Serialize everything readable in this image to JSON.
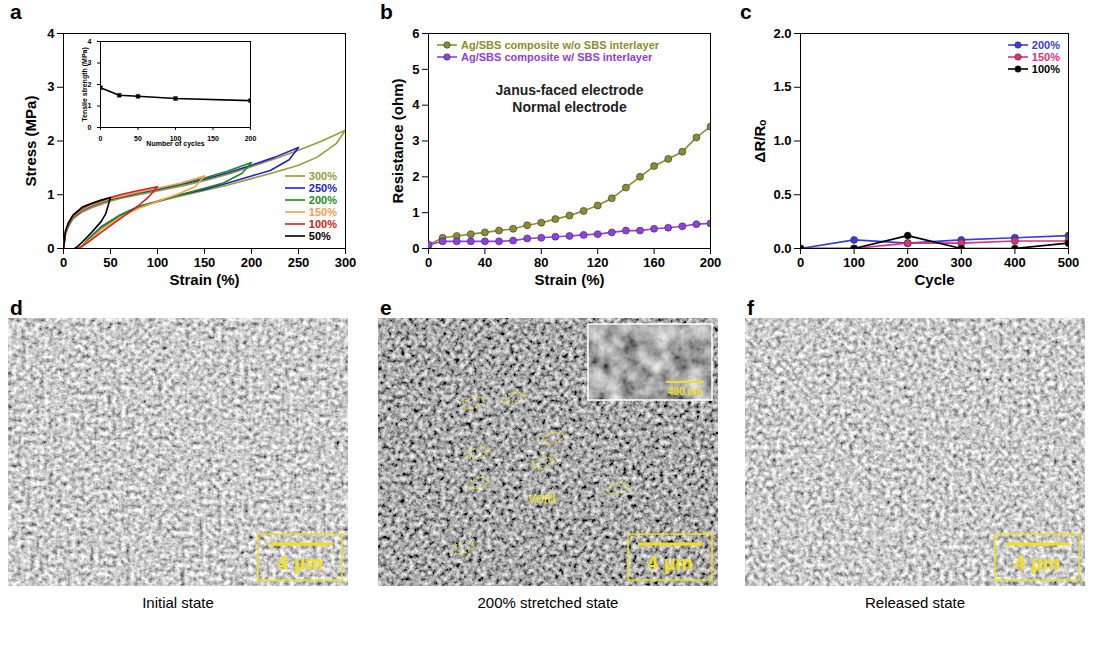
{
  "chart_data": [
    {
      "type": "line",
      "panel": "a",
      "x_label": "Strain (%)",
      "y_label": "Stress (MPa)",
      "xlim": [
        0,
        300
      ],
      "ylim": [
        0,
        4
      ],
      "xticks": [
        0,
        50,
        100,
        150,
        200,
        250,
        300
      ],
      "yticks": [
        0,
        1,
        2,
        3,
        4
      ],
      "legend": "lower right",
      "series": [
        {
          "name": "300%",
          "color": "#9a9a3a",
          "x": [
            0,
            2,
            5,
            10,
            20,
            30,
            40,
            50,
            60,
            80,
            100,
            125,
            150,
            175,
            200,
            225,
            250,
            275,
            300,
            290,
            270,
            250,
            225,
            200,
            175,
            150,
            120,
            100,
            80,
            60,
            40,
            25,
            18
          ],
          "values": [
            0,
            0.25,
            0.4,
            0.55,
            0.68,
            0.76,
            0.82,
            0.88,
            0.93,
            1.0,
            1.07,
            1.16,
            1.26,
            1.38,
            1.52,
            1.67,
            1.83,
            2.0,
            2.2,
            1.95,
            1.7,
            1.55,
            1.42,
            1.3,
            1.18,
            1.08,
            0.96,
            0.87,
            0.76,
            0.6,
            0.38,
            0.14,
            0
          ]
        },
        {
          "name": "250%",
          "color": "#2222c8",
          "x": [
            0,
            2,
            5,
            10,
            20,
            30,
            40,
            50,
            60,
            80,
            100,
            125,
            150,
            175,
            200,
            225,
            250,
            240,
            220,
            200,
            175,
            150,
            120,
            100,
            80,
            60,
            40,
            25,
            18
          ],
          "values": [
            0,
            0.27,
            0.42,
            0.57,
            0.71,
            0.79,
            0.85,
            0.91,
            0.95,
            1.03,
            1.1,
            1.19,
            1.29,
            1.41,
            1.55,
            1.7,
            1.88,
            1.65,
            1.45,
            1.35,
            1.22,
            1.1,
            0.98,
            0.88,
            0.78,
            0.62,
            0.4,
            0.15,
            0
          ]
        },
        {
          "name": "200%",
          "color": "#1c8c1c",
          "x": [
            0,
            2,
            5,
            10,
            20,
            30,
            40,
            50,
            60,
            80,
            100,
            125,
            150,
            175,
            200,
            190,
            170,
            150,
            120,
            100,
            80,
            60,
            40,
            25,
            18
          ],
          "values": [
            0,
            0.28,
            0.43,
            0.58,
            0.72,
            0.8,
            0.86,
            0.92,
            0.96,
            1.04,
            1.11,
            1.2,
            1.31,
            1.44,
            1.6,
            1.4,
            1.22,
            1.12,
            0.98,
            0.88,
            0.78,
            0.62,
            0.4,
            0.15,
            0
          ]
        },
        {
          "name": "150%",
          "color": "#f0a050",
          "x": [
            0,
            2,
            5,
            10,
            20,
            30,
            40,
            50,
            60,
            80,
            100,
            125,
            150,
            140,
            120,
            100,
            80,
            60,
            40,
            25,
            18
          ],
          "values": [
            0,
            0.29,
            0.44,
            0.59,
            0.73,
            0.81,
            0.87,
            0.93,
            0.97,
            1.05,
            1.12,
            1.22,
            1.35,
            1.15,
            1.0,
            0.88,
            0.75,
            0.58,
            0.35,
            0.12,
            0
          ]
        },
        {
          "name": "100%",
          "color": "#d42020",
          "x": [
            0,
            2,
            5,
            10,
            20,
            30,
            40,
            50,
            60,
            80,
            100,
            90,
            80,
            60,
            40,
            25,
            15
          ],
          "values": [
            0,
            0.3,
            0.45,
            0.6,
            0.75,
            0.83,
            0.89,
            0.95,
            1.0,
            1.08,
            1.15,
            0.95,
            0.8,
            0.55,
            0.3,
            0.1,
            0
          ]
        },
        {
          "name": "50%",
          "color": "#000000",
          "x": [
            0,
            2,
            5,
            10,
            20,
            30,
            40,
            50,
            45,
            40,
            30,
            20,
            15,
            12
          ],
          "values": [
            0,
            0.32,
            0.47,
            0.62,
            0.77,
            0.84,
            0.9,
            0.95,
            0.65,
            0.5,
            0.3,
            0.12,
            0.04,
            0
          ]
        }
      ],
      "inset": {
        "type": "line",
        "x_label": "Number of cycles",
        "y_label": "Tensile strength (MPa)",
        "xlim": [
          0,
          200
        ],
        "ylim": [
          0,
          4
        ],
        "xticks": [
          0,
          50,
          100,
          150,
          200
        ],
        "yticks": [
          0,
          1,
          2,
          3,
          4
        ],
        "marker": "square",
        "series": [
          {
            "color": "#000000",
            "x": [
              0,
              25,
              50,
              100,
              200
            ],
            "values": [
              1.85,
              1.5,
              1.45,
              1.35,
              1.25
            ]
          }
        ]
      }
    },
    {
      "type": "line",
      "panel": "b",
      "x_label": "Strain (%)",
      "y_label": "Resistance (ohm)",
      "xlim": [
        0,
        200
      ],
      "ylim": [
        0,
        6
      ],
      "xticks": [
        0,
        40,
        80,
        120,
        160,
        200
      ],
      "yticks": [
        0,
        1,
        2,
        3,
        4,
        5,
        6
      ],
      "legend": "upper left",
      "marker": "circle",
      "annotations": [
        "Janus-faced electrode",
        "Normal electrode"
      ],
      "x": [
        0,
        10,
        20,
        30,
        40,
        50,
        60,
        70,
        80,
        90,
        100,
        110,
        120,
        130,
        140,
        150,
        160,
        170,
        180,
        190,
        200
      ],
      "series": [
        {
          "name": "Ag/SBS composite w/o SBS interlayer",
          "color": "#8c8c30",
          "values": [
            0.1,
            0.3,
            0.35,
            0.4,
            0.45,
            0.5,
            0.55,
            0.65,
            0.72,
            0.82,
            0.92,
            1.05,
            1.2,
            1.4,
            1.7,
            2.0,
            2.3,
            2.5,
            2.7,
            3.1,
            3.4
          ]
        },
        {
          "name": "Ag/SBS composite w/ SBS interlayer",
          "color": "#9040e0",
          "values": [
            0.1,
            0.2,
            0.2,
            0.2,
            0.2,
            0.2,
            0.22,
            0.28,
            0.3,
            0.33,
            0.35,
            0.38,
            0.4,
            0.45,
            0.5,
            0.5,
            0.55,
            0.58,
            0.62,
            0.68,
            0.7
          ]
        }
      ]
    },
    {
      "type": "line",
      "panel": "c",
      "x_label": "Cycle",
      "y_label": "ΔR/Rₒ",
      "xlim": [
        0,
        500
      ],
      "ylim": [
        0,
        2
      ],
      "xticks": [
        0,
        100,
        200,
        300,
        400,
        500
      ],
      "yticks": [
        {
          "value": 0,
          "label": "0.0"
        },
        {
          "value": 0.5,
          "label": "0.5"
        },
        {
          "value": 1,
          "label": "1.0"
        },
        {
          "value": 1.5,
          "label": "1.5"
        },
        {
          "value": 2,
          "label": "2.0"
        }
      ],
      "legend": "upper right",
      "marker": "circle",
      "x": [
        0,
        100,
        200,
        300,
        400,
        500
      ],
      "series": [
        {
          "name": "200%",
          "color": "#3a3ae0",
          "values": [
            0,
            0.08,
            0.05,
            0.08,
            0.1,
            0.12
          ]
        },
        {
          "name": "150%",
          "color": "#e0307a",
          "values": [
            0,
            0.0,
            0.05,
            0.05,
            0.07,
            0.07
          ]
        },
        {
          "name": "100%",
          "color": "#000000",
          "values": [
            0,
            0,
            0.12,
            0,
            0,
            0.05
          ]
        }
      ]
    }
  ],
  "images": [
    {
      "panel": "d",
      "scale_bar": "4 µm",
      "caption": "Initial state"
    },
    {
      "panel": "e",
      "scale_bar": "4 µm",
      "caption": "200% stretched state",
      "annotation": "void",
      "inset_scale_bar": "400 nm"
    },
    {
      "panel": "f",
      "scale_bar": "4 µm",
      "caption": "Released state"
    }
  ]
}
